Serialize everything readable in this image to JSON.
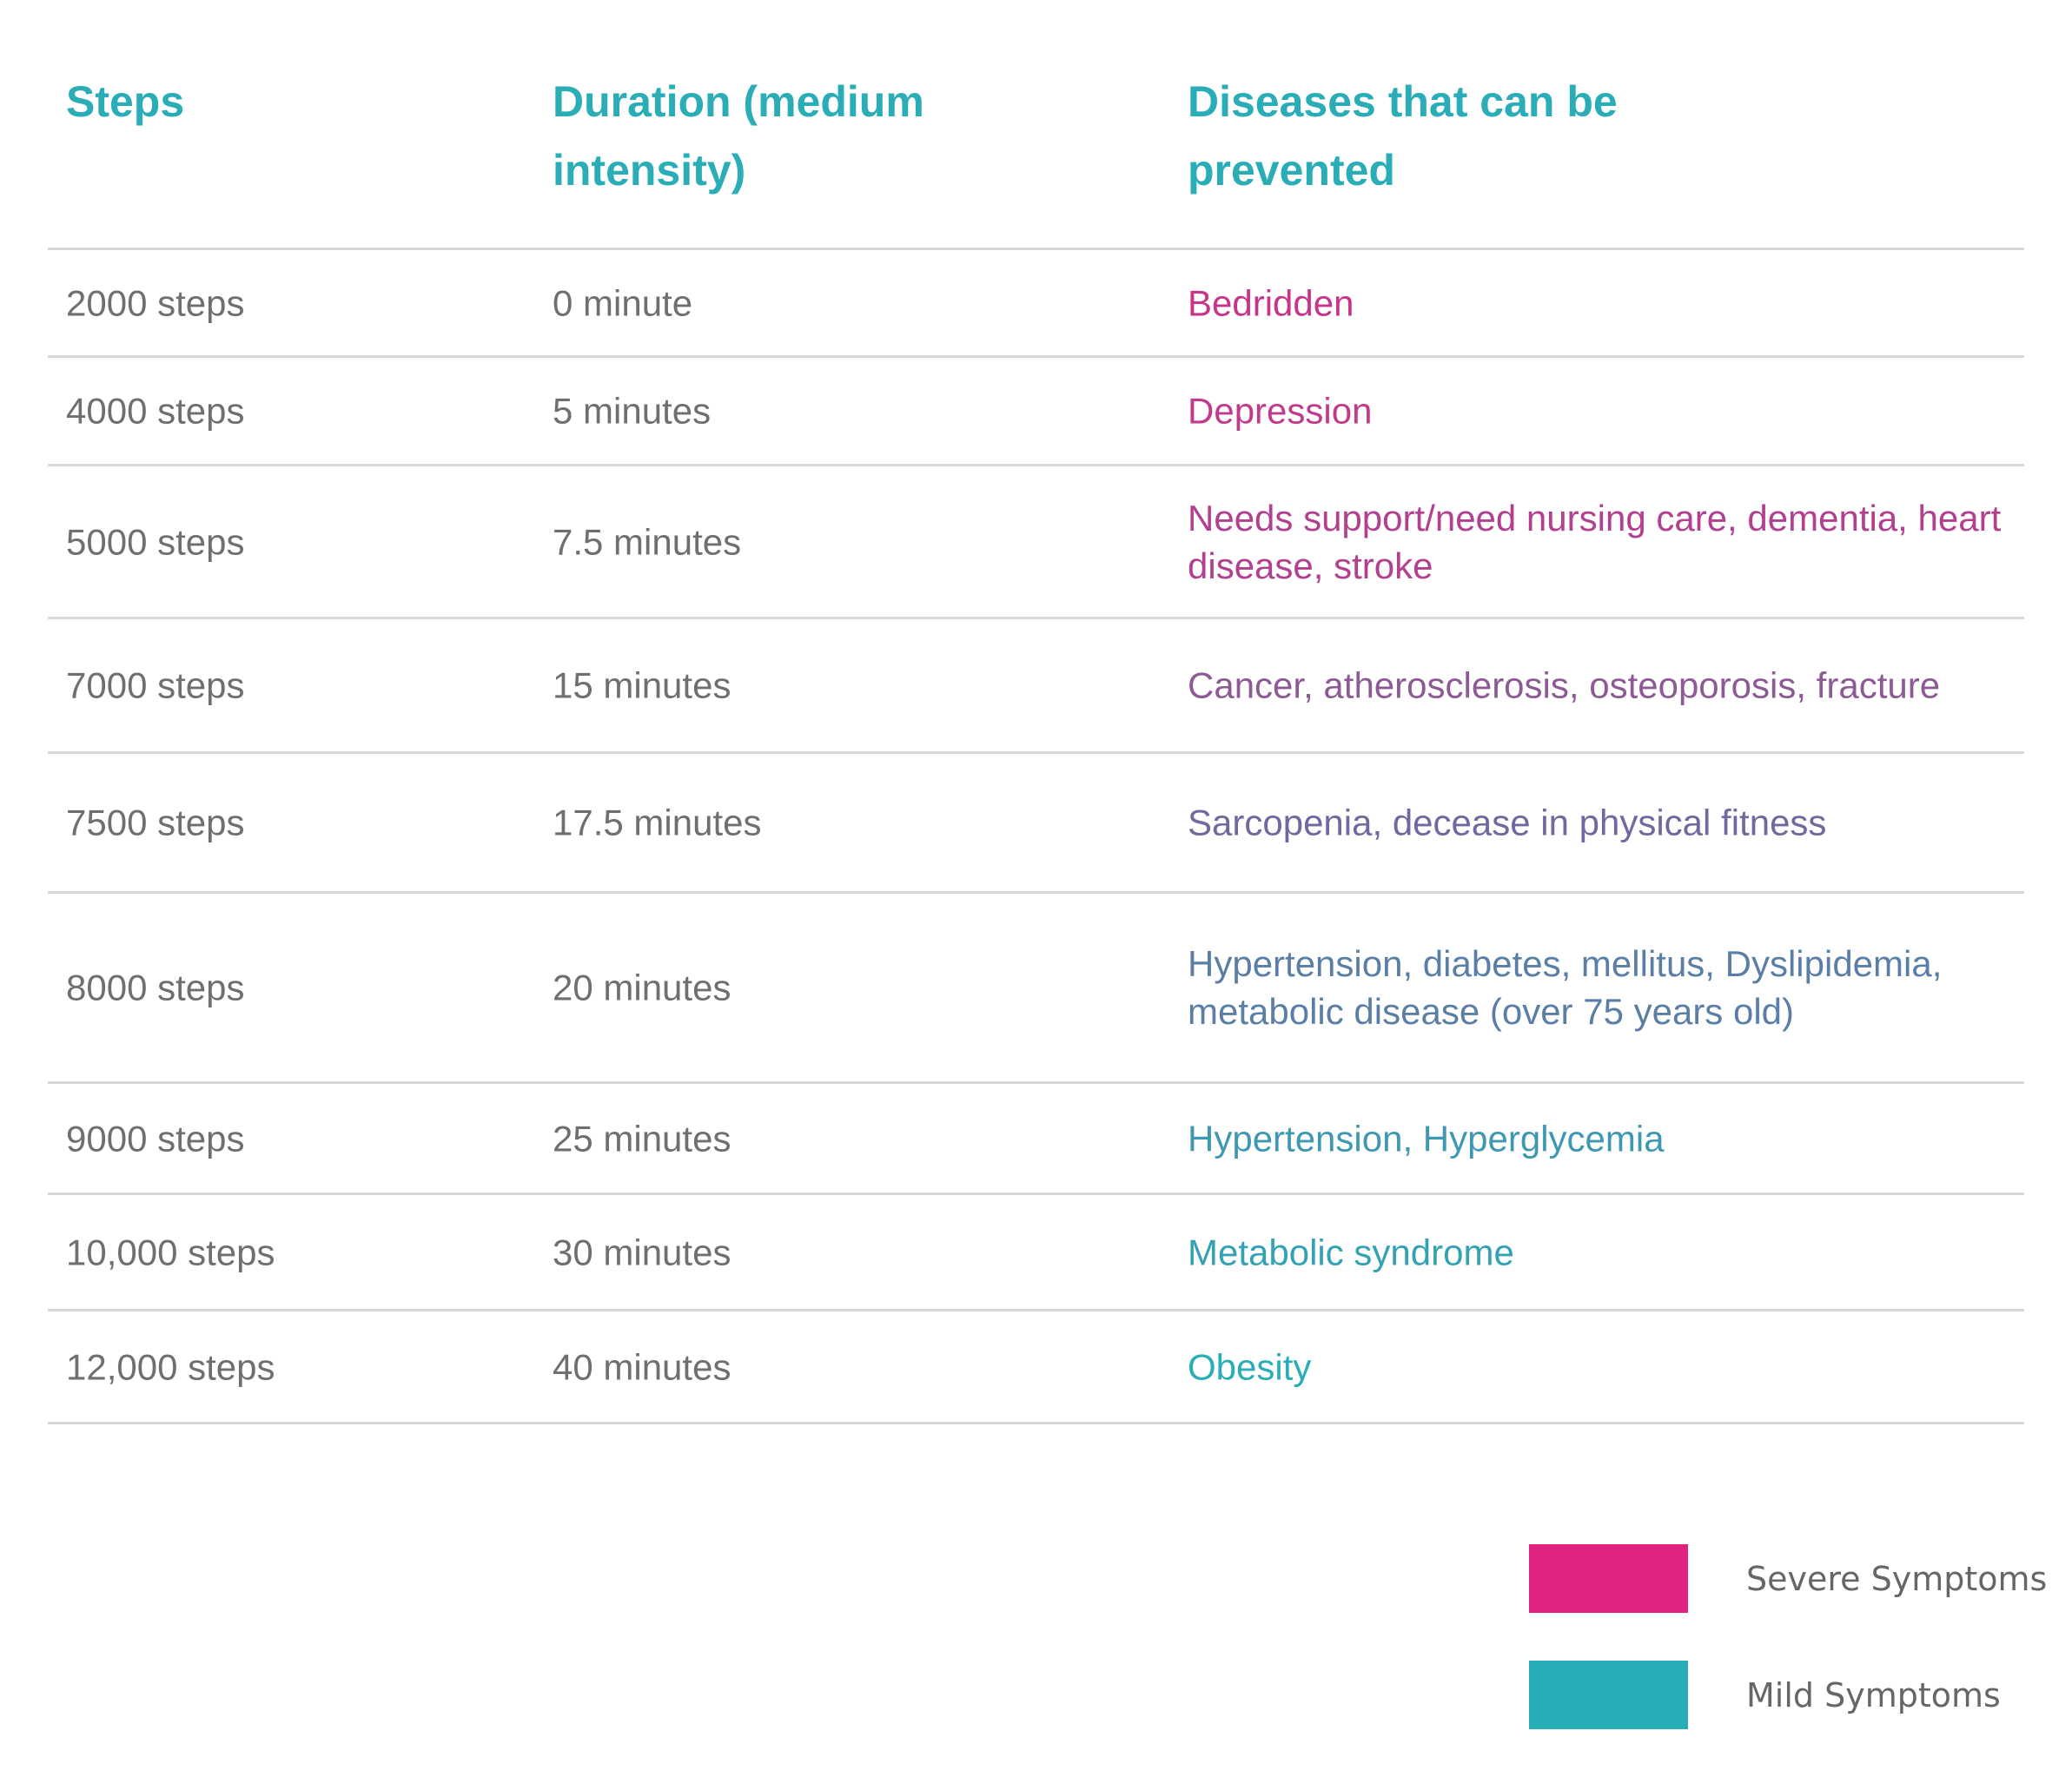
{
  "headers": {
    "steps": "Steps",
    "duration": "Duration (medium intensity)",
    "diseases": "Diseases that can be prevented"
  },
  "rows": [
    {
      "steps": "2000 steps",
      "duration": "0 minute",
      "diseases": "Bedridden",
      "color": "#c7348a"
    },
    {
      "steps": "4000 steps",
      "duration": "5 minutes",
      "diseases": "Depression",
      "color": "#c13a8c"
    },
    {
      "steps": "5000 steps",
      "duration": "7.5 minutes",
      "diseases": "Needs support/need nursing care, dementia, heart disease, stroke",
      "color": "#b2408e"
    },
    {
      "steps": "7000 steps",
      "duration": "15 minutes",
      "diseases": "Cancer, atherosclerosis, osteoporosis, fracture",
      "color": "#8d5a95"
    },
    {
      "steps": "7500 steps",
      "duration": "17.5 minutes",
      "diseases": "Sarcopenia, decease in physical fitness",
      "color": "#72679f"
    },
    {
      "steps": "8000 steps",
      "duration": "20 minutes",
      "diseases": "Hypertension, diabetes, mellitus, Dyslipidemia, metabolic disease (over 75 years old)",
      "color": "#5a7ea6"
    },
    {
      "steps": "9000 steps",
      "duration": "25 minutes",
      "diseases": "Hypertension, Hyperglycemia",
      "color": "#3f98b1"
    },
    {
      "steps": "10,000 steps",
      "duration": "30 minutes",
      "diseases": "Metabolic syndrome",
      "color": "#33a2b3"
    },
    {
      "steps": "12,000 steps",
      "duration": "40 minutes",
      "diseases": "Obesity",
      "color": "#2aadb6"
    }
  ],
  "legend": [
    {
      "label": "Severe Symptoms",
      "color": "#e0237f"
    },
    {
      "label": "Mild Symptoms",
      "color": "#27adb6"
    }
  ]
}
